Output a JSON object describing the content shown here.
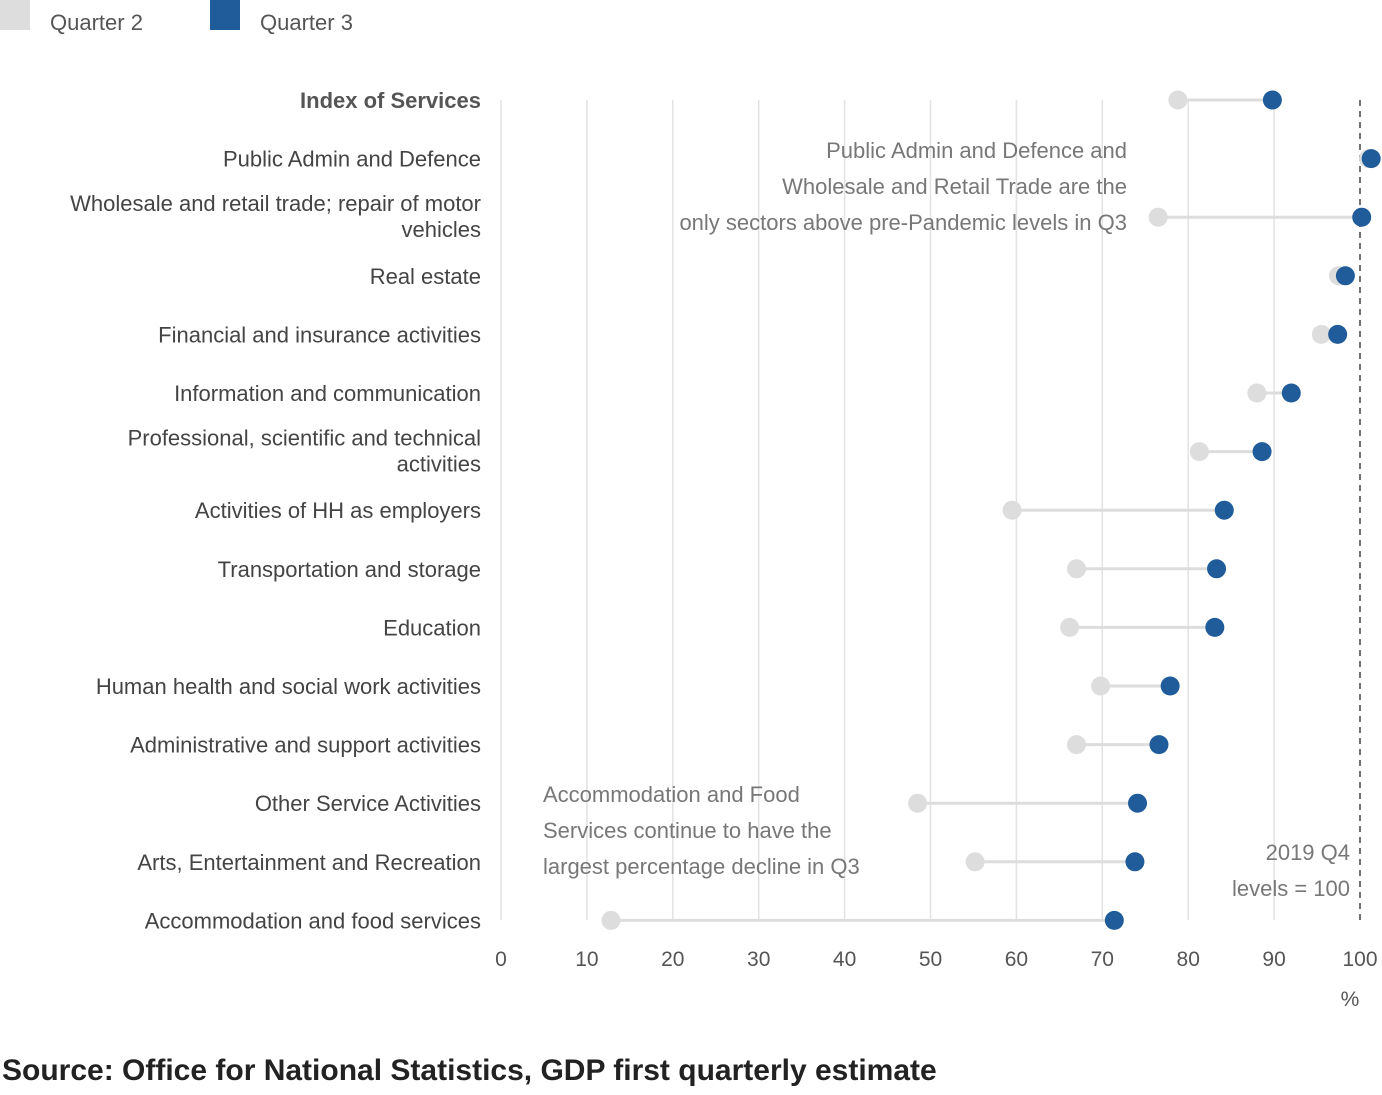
{
  "chart_data": {
    "type": "dumbbell",
    "legend": [
      {
        "name": "Quarter 2",
        "color": "#dddddd"
      },
      {
        "name": "Quarter 3",
        "color": "#1f5c99"
      }
    ],
    "legend_placement": "top-left",
    "categories": [
      "Index of Services",
      "Public Admin and Defence",
      "Wholesale and retail trade; repair of motor vehicles",
      "Real estate",
      "Financial and insurance activities",
      "Information and communication",
      "Professional, scientific and technical activities",
      "Activities of HH as employers",
      "Transportation and storage",
      "Education",
      "Human health and social work activities",
      "Administrative and support activities",
      "Other Service Activities",
      "Arts, Entertainment and Recreation",
      "Accommodation and food services"
    ],
    "series": [
      {
        "name": "Quarter 2",
        "values": [
          78.8,
          101.0,
          76.5,
          97.5,
          95.5,
          88.0,
          81.3,
          59.5,
          67.0,
          66.2,
          69.8,
          67.0,
          48.5,
          55.2,
          12.8
        ]
      },
      {
        "name": "Quarter 3",
        "values": [
          89.8,
          101.3,
          100.2,
          98.3,
          97.4,
          92.0,
          88.6,
          84.2,
          83.3,
          83.1,
          77.9,
          76.6,
          74.1,
          73.8,
          71.4
        ]
      }
    ],
    "xlim": [
      0,
      100
    ],
    "xticks": [
      0,
      10,
      20,
      30,
      40,
      50,
      60,
      70,
      80,
      90,
      100
    ],
    "xlabel": "%",
    "grid": "vertical",
    "reference_line": {
      "value": 100,
      "label_lines": [
        "2019 Q4",
        "levels = 100"
      ]
    },
    "annotations": [
      {
        "lines": [
          "Public Admin and Defence and",
          "Wholesale and Retail Trade are the",
          "only sectors above pre-Pandemic levels in Q3"
        ]
      },
      {
        "lines": [
          "Accommodation and Food",
          "Services continue to have the",
          "largest percentage decline in Q3"
        ]
      }
    ]
  },
  "source": "Source: Office for National Statistics, GDP first quarterly estimate"
}
